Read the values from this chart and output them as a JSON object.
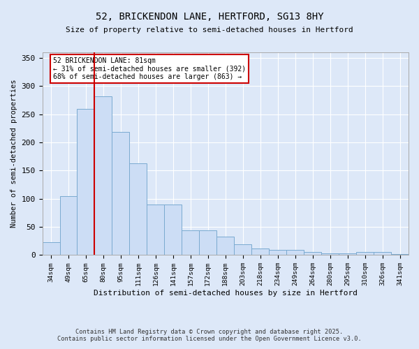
{
  "title_line1": "52, BRICKENDON LANE, HERTFORD, SG13 8HY",
  "title_line2": "Size of property relative to semi-detached houses in Hertford",
  "xlabel": "Distribution of semi-detached houses by size in Hertford",
  "ylabel": "Number of semi-detached properties",
  "bar_values": [
    23,
    105,
    260,
    282,
    219,
    163,
    90,
    90,
    44,
    44,
    33,
    19,
    11,
    9,
    9,
    5,
    3,
    3,
    5,
    5,
    2
  ],
  "bin_labels": [
    "34sqm",
    "49sqm",
    "65sqm",
    "80sqm",
    "95sqm",
    "111sqm",
    "126sqm",
    "141sqm",
    "157sqm",
    "172sqm",
    "188sqm",
    "203sqm",
    "218sqm",
    "234sqm",
    "249sqm",
    "264sqm",
    "280sqm",
    "295sqm",
    "310sqm",
    "326sqm",
    "341sqm"
  ],
  "bar_color": "#ccddf5",
  "bar_edge_color": "#7aaad0",
  "property_bin_index": 3,
  "annotation_title": "52 BRICKENDON LANE: 81sqm",
  "annotation_line2": "← 31% of semi-detached houses are smaller (392)",
  "annotation_line3": "68% of semi-detached houses are larger (863) →",
  "vline_color": "#cc0000",
  "annotation_box_color": "#cc0000",
  "ylim": [
    0,
    360
  ],
  "yticks": [
    0,
    50,
    100,
    150,
    200,
    250,
    300,
    350
  ],
  "footnote_line1": "Contains HM Land Registry data © Crown copyright and database right 2025.",
  "footnote_line2": "Contains public sector information licensed under the Open Government Licence v3.0.",
  "bg_color": "#dde8f8",
  "plot_bg_color": "#dde8f8"
}
